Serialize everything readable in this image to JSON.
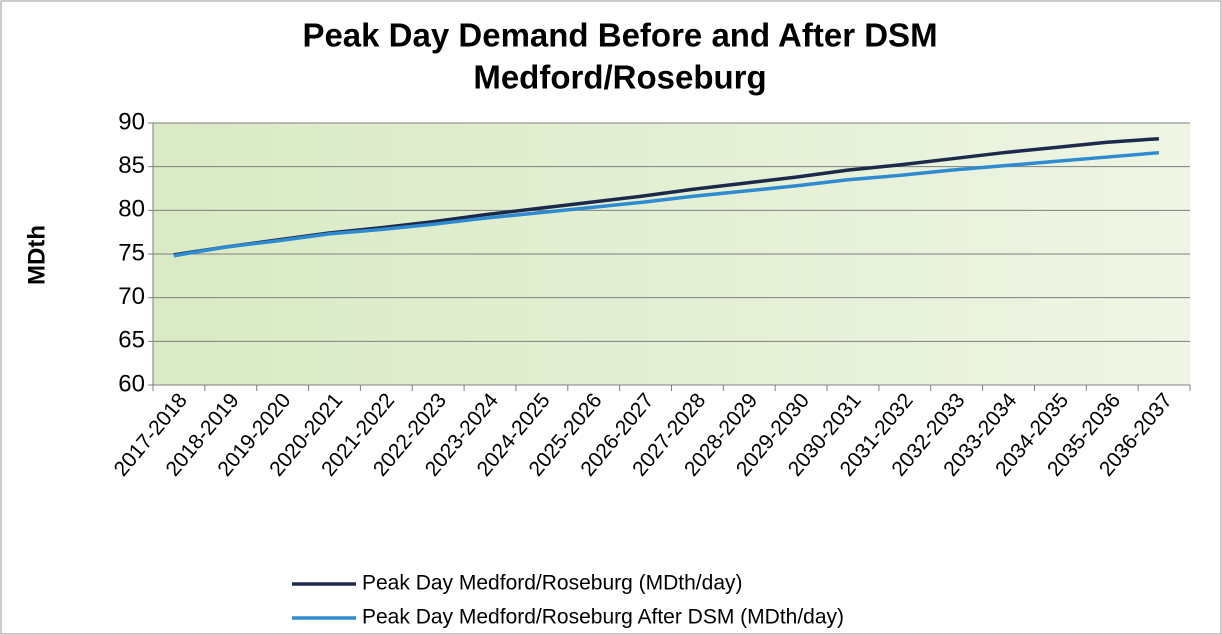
{
  "chart_data": {
    "type": "line",
    "title": [
      "Peak Day Demand Before and After DSM",
      "Medford/Roseburg"
    ],
    "y_label": "MDth",
    "categories": [
      "2017-2018",
      "2018-2019",
      "2019-2020",
      "2020-2021",
      "2021-2022",
      "2022-2023",
      "2023-2024",
      "2024-2025",
      "2025-2026",
      "2026-2027",
      "2027-2028",
      "2028-2029",
      "2029-2030",
      "2030-2031",
      "2031-2032",
      "2032-2033",
      "2033-2034",
      "2034-2035",
      "2035-2036",
      "2036-2037"
    ],
    "series": [
      {
        "name": "Peak Day Medford/Roseburg (MDth/day)",
        "color": "#1b2a4a",
        "values": [
          74.9,
          75.8,
          76.6,
          77.4,
          78.0,
          78.7,
          79.5,
          80.2,
          80.9,
          81.6,
          82.4,
          83.1,
          83.8,
          84.6,
          85.2,
          85.9,
          86.6,
          87.2,
          87.8,
          88.2
        ]
      },
      {
        "name": "Peak Day Medford/Roseburg After DSM (MDth/day)",
        "color": "#2e8bd0",
        "values": [
          74.8,
          75.8,
          76.5,
          77.3,
          77.8,
          78.4,
          79.1,
          79.7,
          80.3,
          80.9,
          81.6,
          82.2,
          82.8,
          83.5,
          84.0,
          84.6,
          85.1,
          85.6,
          86.1,
          86.6
        ]
      }
    ],
    "ylim": [
      60,
      90
    ],
    "yticks": [
      60,
      65,
      70,
      75,
      80,
      85,
      90
    ],
    "grid": true,
    "legend": "bottom"
  }
}
